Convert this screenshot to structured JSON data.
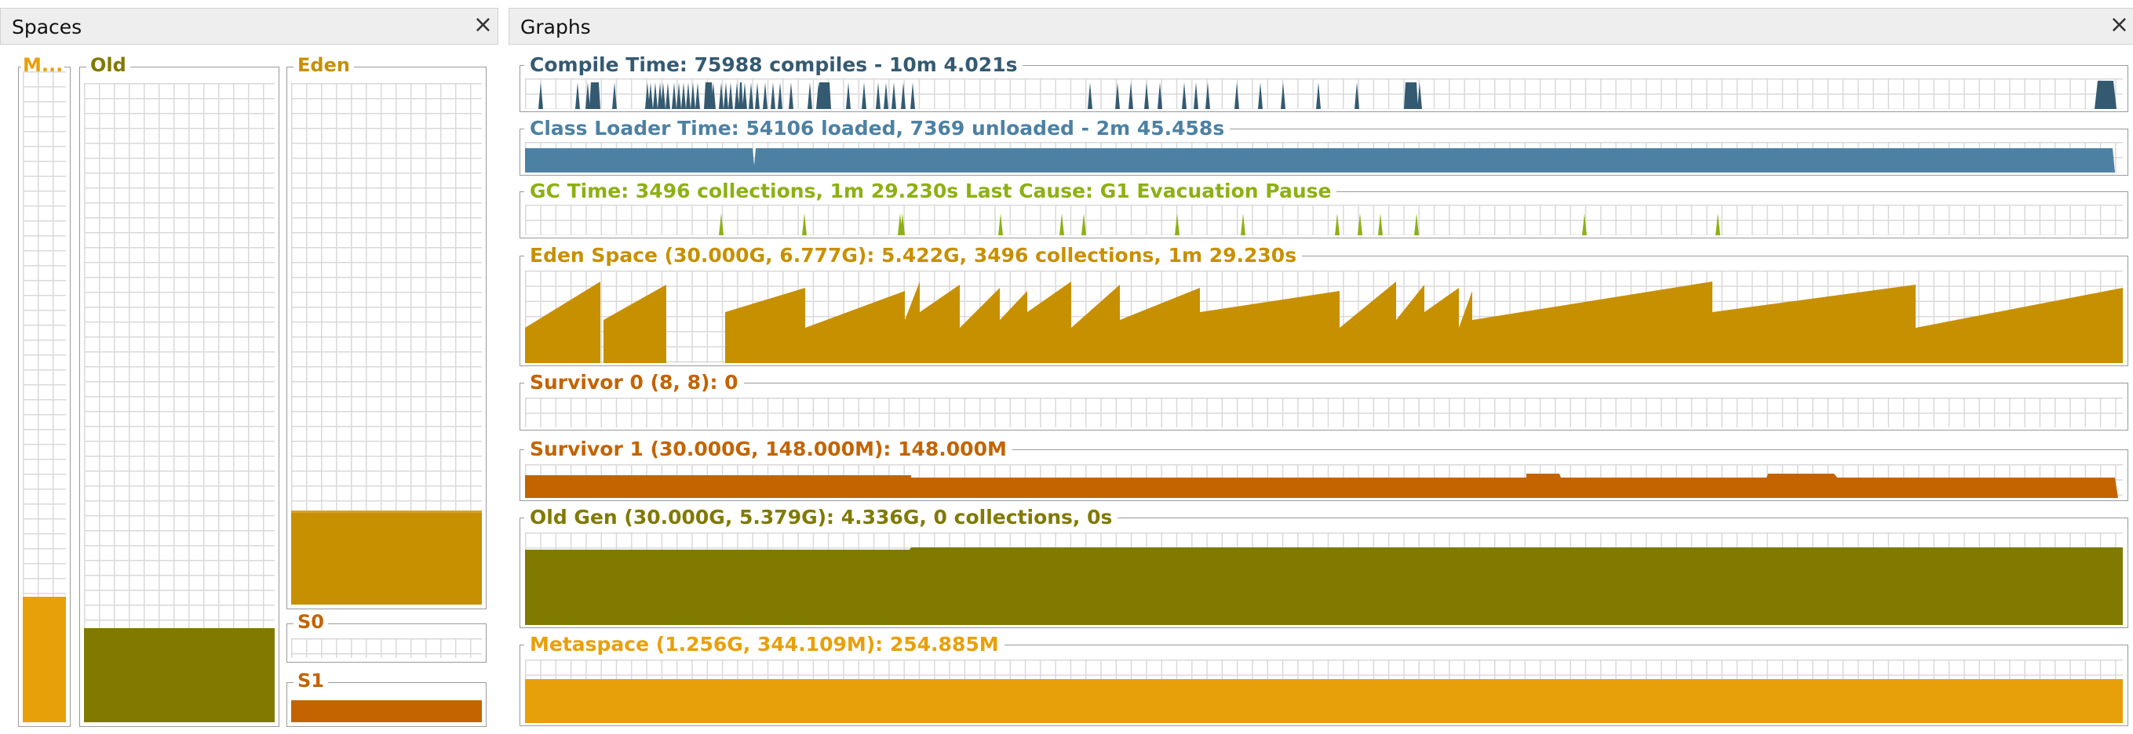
{
  "spaces": {
    "title": "Spaces",
    "metaspace": {
      "label": "M...",
      "used_fraction": 0.203,
      "color": "#E8A00A"
    },
    "old": {
      "label": "Old",
      "used_fraction": 0.146,
      "color": "#807A00"
    },
    "eden": {
      "label": "Eden",
      "used_fraction": 0.181,
      "color": "#C79000"
    },
    "s0": {
      "label": "S0",
      "used_fraction": 0.0
    },
    "s1": {
      "label": "S1",
      "used_fraction": 1.0,
      "color": "#C36400"
    }
  },
  "graphs": {
    "title": "Graphs",
    "compile_time": {
      "label": "Compile Time: 75988 compiles - 10m 4.021s",
      "color": "#345A71"
    },
    "class_loader_time": {
      "label": "Class Loader Time: 54106 loaded, 7369 unloaded - 2m 45.458s",
      "color": "#4D81A3"
    },
    "gc_time": {
      "label": "GC Time: 3496 collections, 1m 29.230s  Last Cause: G1 Evacuation Pause",
      "color": "#8DB013"
    },
    "eden_space": {
      "label": "Eden Space (30.000G, 6.777G): 5.422G, 3496 collections, 1m 29.230s",
      "color": "#C79000"
    },
    "survivor0": {
      "label": "Survivor 0 (8, 8): 0",
      "color": "#C36400"
    },
    "survivor1": {
      "label": "Survivor 1 (30.000G, 148.000M): 148.000M",
      "color": "#C36400"
    },
    "old_gen": {
      "label": "Old Gen (30.000G, 5.379G): 4.336G, 0 collections, 0s",
      "color": "#807A00"
    },
    "metaspace": {
      "label": "Metaspace (1.256G, 344.109M): 254.885M",
      "color": "#E8A00A"
    }
  }
}
